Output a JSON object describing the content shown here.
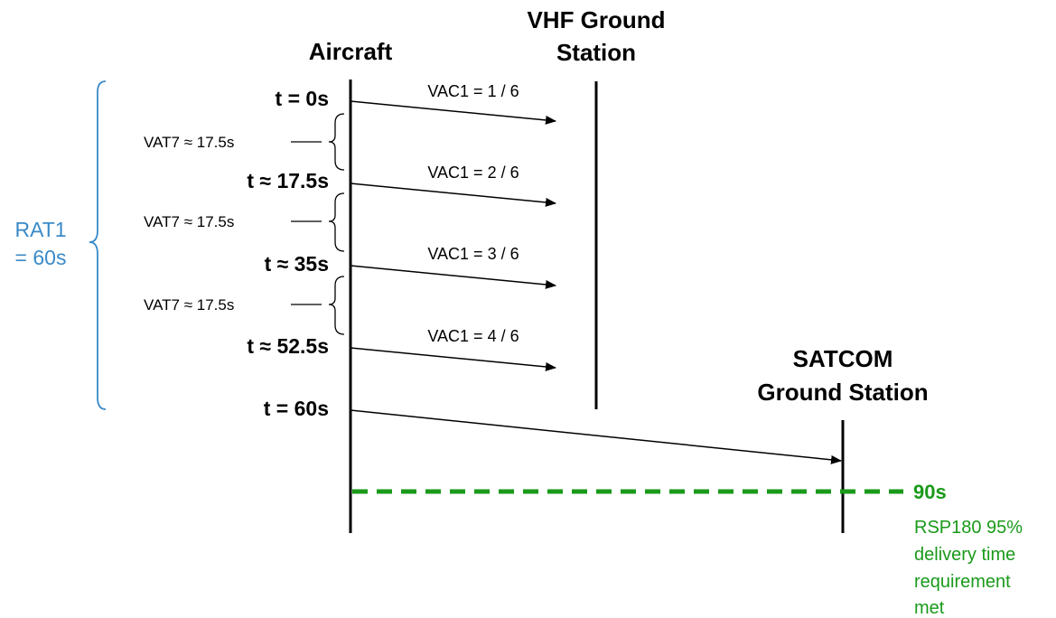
{
  "colors": {
    "line": "#000000",
    "rat_brace": "#3a8ac8",
    "rsp_green": "#1a9a1a"
  },
  "nodes": {
    "aircraft": "Aircraft",
    "vhf_station": [
      "VHF Ground",
      "Station"
    ],
    "satcom_station": [
      "SATCOM",
      "Ground Station"
    ]
  },
  "time_labels": [
    "t = 0s",
    "t ≈ 17.5s",
    "t ≈ 35s",
    "t ≈ 52.5s",
    "t = 60s"
  ],
  "messages": [
    "VAC1 = 1 / 6",
    "VAC1 = 2 / 6",
    "VAC1 = 3 / 6",
    "VAC1 = 4 / 6"
  ],
  "intervals": [
    "VAT7 ≈ 17.5s",
    "VAT7 ≈ 17.5s",
    "VAT7 ≈ 17.5s"
  ],
  "rat": [
    "RAT1",
    "= 60s"
  ],
  "rsp": {
    "time": "90s",
    "note": [
      "RSP180 95%",
      "delivery time",
      "requirement",
      "met"
    ]
  }
}
